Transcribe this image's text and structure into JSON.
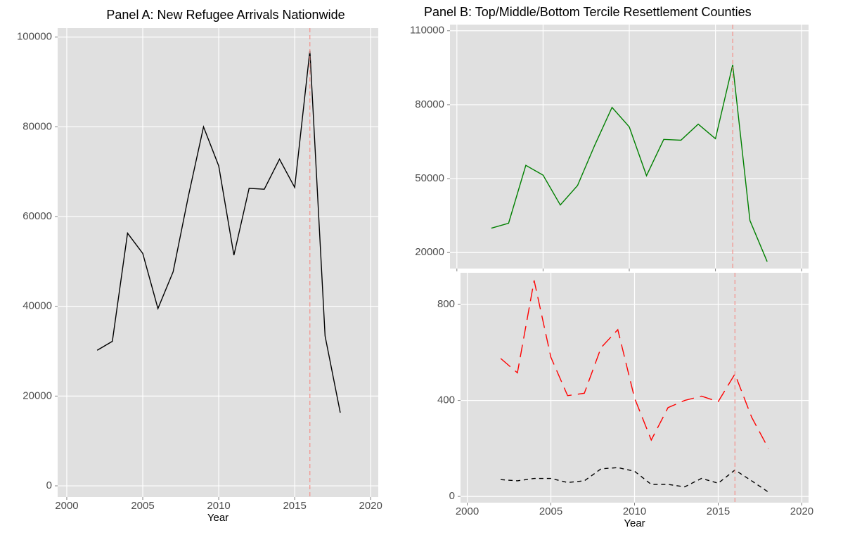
{
  "chart_data": [
    {
      "type": "line",
      "title": "Panel A: New Refugee Arrivals Nationwide",
      "xlabel": "Year",
      "x": [
        2002,
        2003,
        2004,
        2005,
        2006,
        2007,
        2008,
        2009,
        2010,
        2011,
        2012,
        2013,
        2014,
        2015,
        2016,
        2017,
        2018
      ],
      "series": [
        {
          "color": "#000000",
          "linestyle": "solid",
          "values": [
            30200,
            32200,
            56300,
            51800,
            39500,
            47700,
            64500,
            80000,
            71300,
            51400,
            66300,
            66100,
            72800,
            66500,
            97000,
            33400,
            16300
          ]
        }
      ],
      "xlim": [
        1999.4,
        2020.5
      ],
      "xticks": [
        2000,
        2005,
        2010,
        2015,
        2020
      ],
      "ylim": [
        -2500,
        102000
      ],
      "yticks": [
        0,
        20000,
        40000,
        60000,
        80000,
        100000
      ],
      "vline": 2016,
      "vline_color": "#f4908a",
      "grid": true
    },
    {
      "type": "line",
      "title": "Panel B: Top/Middle/Bottom Tercile Resettlement Counties",
      "x": [
        2002,
        2003,
        2004,
        2005,
        2006,
        2007,
        2008,
        2009,
        2010,
        2011,
        2012,
        2013,
        2014,
        2015,
        2016,
        2017,
        2018
      ],
      "series": [
        {
          "color": "#008000",
          "linestyle": "solid",
          "values": [
            29900,
            31900,
            55400,
            51400,
            39300,
            47200,
            63600,
            78900,
            71000,
            51200,
            65900,
            65600,
            72100,
            66200,
            96200,
            33000,
            16300
          ]
        }
      ],
      "xlim": [
        1999.6,
        2020.4
      ],
      "xticks": [
        2000,
        2005,
        2010,
        2015,
        2020
      ],
      "xtick_labels": false,
      "ylim": [
        13500,
        112500
      ],
      "yticks": [
        20000,
        50000,
        80000,
        110000
      ],
      "vline": 2016,
      "vline_color": "#f4908a",
      "grid": true
    },
    {
      "type": "line",
      "xlabel": "Year",
      "x": [
        2002,
        2003,
        2004,
        2005,
        2006,
        2007,
        2008,
        2009,
        2010,
        2011,
        2012,
        2013,
        2014,
        2015,
        2016,
        2017,
        2018
      ],
      "series": [
        {
          "color": "#ff0000",
          "linestyle": "longdash",
          "values": [
            575,
            515,
            900,
            580,
            420,
            430,
            620,
            695,
            410,
            235,
            370,
            400,
            418,
            395,
            510,
            330,
            200
          ]
        },
        {
          "color": "#000000",
          "linestyle": "dash",
          "values": [
            70,
            65,
            75,
            75,
            58,
            65,
            115,
            120,
            105,
            50,
            50,
            40,
            75,
            55,
            110,
            65,
            18
          ]
        }
      ],
      "xlim": [
        1999.6,
        2020.4
      ],
      "xticks": [
        2000,
        2005,
        2010,
        2015,
        2020
      ],
      "ylim": [
        -26,
        932
      ],
      "yticks": [
        0,
        400,
        800
      ],
      "vline": 2016,
      "vline_color": "#f4908a",
      "grid": true
    }
  ]
}
